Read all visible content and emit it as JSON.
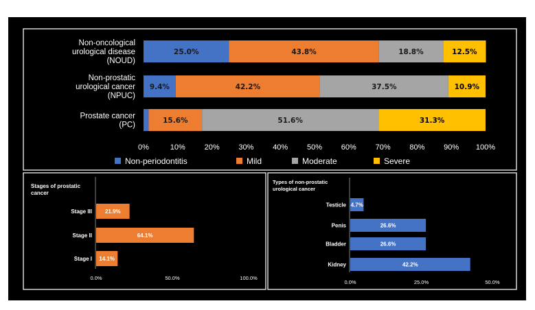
{
  "chart_data": [
    {
      "type": "bar",
      "orientation": "horizontal",
      "stacked": true,
      "percent": true,
      "categories": [
        "Non-oncological urological disease (NOUD)",
        "Non-prostatic urological cancer (NPUC)",
        "Prostate cancer (PC)"
      ],
      "category_lines": [
        [
          "Non-oncological",
          "urological disease",
          "(NOUD)"
        ],
        [
          "Non-prostatic",
          "urological cancer",
          "(NPUC)"
        ],
        [
          "Prostate cancer",
          "(PC)"
        ]
      ],
      "series": [
        {
          "name": "Non-periodontitis",
          "color": "#4472C4",
          "values": [
            25.0,
            9.4,
            1.5
          ],
          "labels": [
            "25.0%",
            "9.4%",
            ""
          ]
        },
        {
          "name": "Mild",
          "color": "#ED7D31",
          "values": [
            43.8,
            42.2,
            15.6
          ],
          "labels": [
            "43.8%",
            "42.2%",
            "15.6%"
          ]
        },
        {
          "name": "Moderate",
          "color": "#A5A5A5",
          "values": [
            18.8,
            37.5,
            51.6
          ],
          "labels": [
            "18.8%",
            "37.5%",
            "51.6%"
          ]
        },
        {
          "name": "Severe",
          "color": "#FFC000",
          "values": [
            12.5,
            10.9,
            31.3
          ],
          "labels": [
            "12.5%",
            "10.9%",
            "31.3%"
          ]
        }
      ],
      "xticks": [
        "0%",
        "10%",
        "20%",
        "30%",
        "40%",
        "50%",
        "60%",
        "70%",
        "80%",
        "90%",
        "100%"
      ],
      "xlim": [
        0,
        100
      ],
      "legend": "bottom"
    },
    {
      "type": "bar",
      "orientation": "horizontal",
      "title": "Stages of prostatic cancer",
      "title_lines": [
        "Stages of prostatic",
        "cancer"
      ],
      "categories": [
        "Stage III",
        "Stage II",
        "Stage I"
      ],
      "values": [
        21.9,
        64.1,
        14.1
      ],
      "labels": [
        "21.9%",
        "64.1%",
        "14.1%"
      ],
      "color": "#ED7D31",
      "xticks": [
        "0.0%",
        "50.0%",
        "100.0%"
      ],
      "xlim": [
        0,
        100
      ]
    },
    {
      "type": "bar",
      "orientation": "horizontal",
      "title": "Types of non-prostatic urological cancer",
      "title_lines": [
        "Types of non-prostatic",
        "urological cancer"
      ],
      "categories": [
        "Testicle",
        "Penis",
        "Bladder",
        "Kidney"
      ],
      "values": [
        4.7,
        26.6,
        26.6,
        42.2
      ],
      "labels": [
        "4.7%",
        "26.6%",
        "26.6%",
        "42.2%"
      ],
      "color": "#4472C4",
      "xticks": [
        "0.0%",
        "25.0%",
        "50.0%"
      ],
      "xlim": [
        0,
        50
      ]
    }
  ]
}
